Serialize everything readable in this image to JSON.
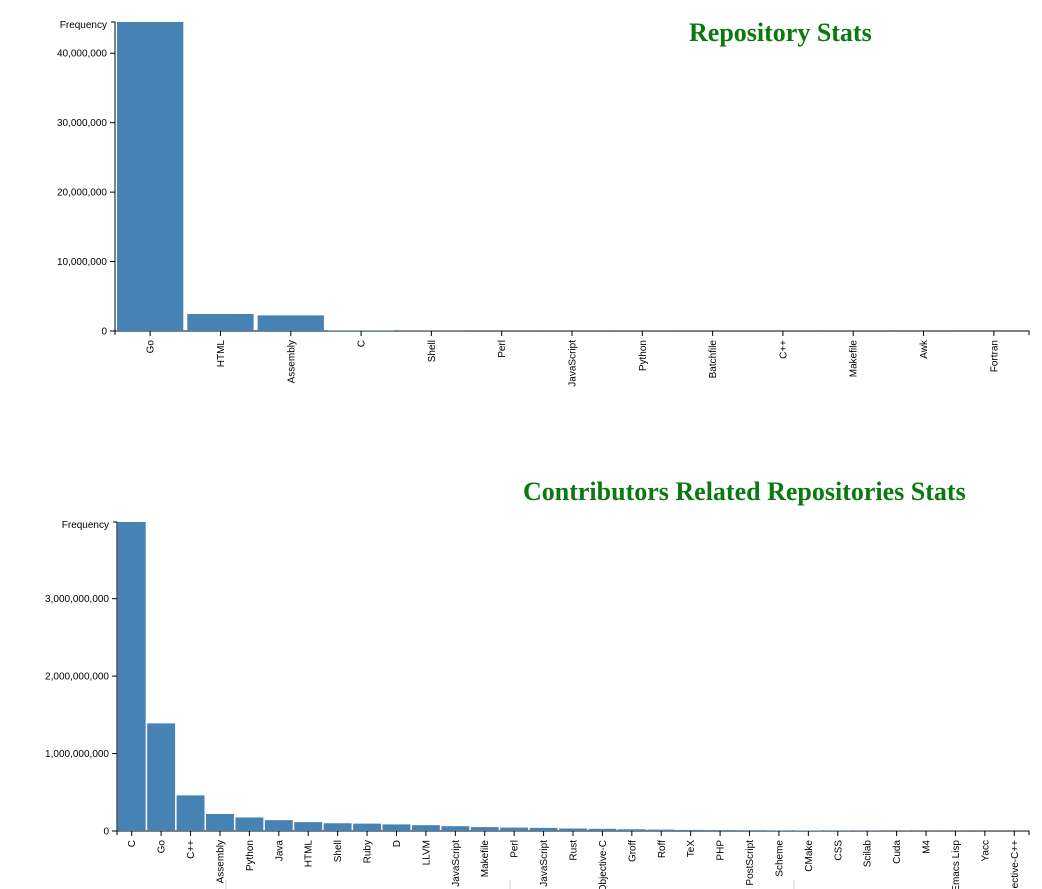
{
  "chart_data": [
    {
      "type": "bar",
      "title": "Repository Stats",
      "ylabel": "Frequency",
      "ylim": [
        0,
        44500000
      ],
      "yticks": [
        0,
        10000000,
        20000000,
        30000000,
        40000000
      ],
      "ytick_labels": [
        "0",
        "10,000,000",
        "20,000,000",
        "30,000,000",
        "40,000,000"
      ],
      "categories": [
        "Go",
        "HTML",
        "Assembly",
        "C",
        "Shell",
        "Perl",
        "JavaScript",
        "Python",
        "Batchfile",
        "C++",
        "Makefile",
        "Awk",
        "Fortran"
      ],
      "values": [
        44500000,
        2450000,
        2250000,
        90000,
        25000,
        15000,
        10000,
        8000,
        6000,
        5000,
        4000,
        2000,
        1000
      ],
      "color": "#4682b4"
    },
    {
      "type": "bar",
      "title": "Contributors Related Repositories Stats",
      "ylabel": "Frequency",
      "ylim": [
        0,
        3990000000
      ],
      "yticks": [
        0,
        1000000000,
        2000000000,
        3000000000
      ],
      "ytick_labels": [
        "0",
        "1,000,000,000",
        "2,000,000,000",
        "3,000,000,000"
      ],
      "categories": [
        "C",
        "Go",
        "C++",
        "Assembly",
        "Python",
        "Java",
        "HTML",
        "Shell",
        "Ruby",
        "D",
        "LLVM",
        "JavaScript",
        "Makefile",
        "Perl",
        "JavaScript",
        "Rust",
        "Objective-C",
        "Groff",
        "Roff",
        "TeX",
        "PHP",
        "PostScript",
        "Scheme",
        "CMake",
        "CSS",
        "Scilab",
        "Cuda",
        "M4",
        "Emacs Lisp",
        "Yacc",
        "Objective-C++"
      ],
      "values": [
        3990000000,
        1390000000,
        460000000,
        220000000,
        175000000,
        140000000,
        115000000,
        100000000,
        95000000,
        85000000,
        75000000,
        62000000,
        50000000,
        44000000,
        40000000,
        32000000,
        28000000,
        22000000,
        18000000,
        14000000,
        12000000,
        10000000,
        8000000,
        6000000,
        5000000,
        4000000,
        3000000,
        2500000,
        2000000,
        1500000,
        1000000
      ],
      "color": "#4682b4"
    }
  ]
}
